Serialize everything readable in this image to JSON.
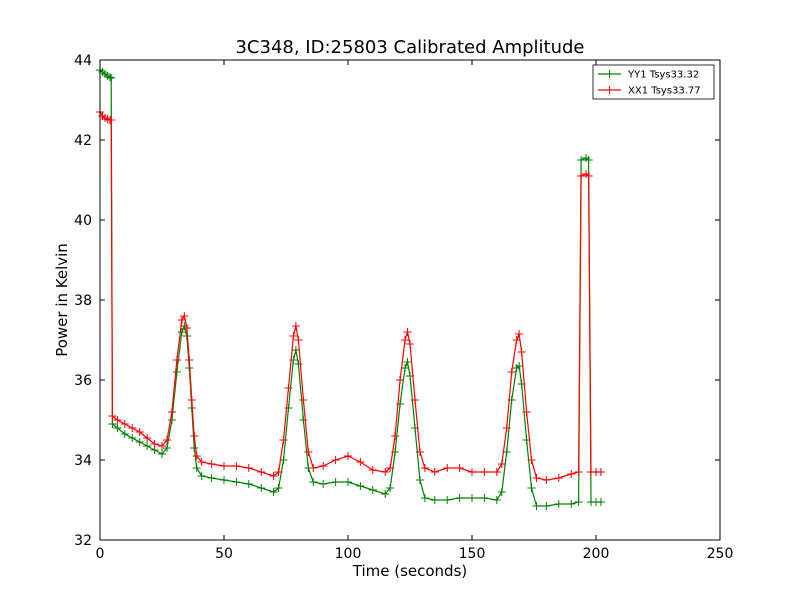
{
  "chart_data": {
    "type": "line",
    "title": "3C348, ID:25803 Calibrated Amplitude",
    "xlabel": "Time (seconds)",
    "ylabel": "Power in Kelvin",
    "xlim": [
      0,
      250
    ],
    "ylim": [
      32,
      44
    ],
    "xticks": [
      0,
      50,
      100,
      150,
      200,
      250
    ],
    "yticks": [
      32,
      34,
      36,
      38,
      40,
      42,
      44
    ],
    "grid": false,
    "legend_position": "top-right",
    "marker": "+",
    "series": [
      {
        "name": "YY1 Tsys33.32",
        "color": "#008000",
        "points": [
          [
            0,
            43.75
          ],
          [
            1,
            43.7
          ],
          [
            2,
            43.65
          ],
          [
            3,
            43.6
          ],
          [
            4,
            43.57
          ],
          [
            4.5,
            43.55
          ],
          [
            5,
            34.9
          ],
          [
            7,
            34.8
          ],
          [
            10,
            34.65
          ],
          [
            13,
            34.55
          ],
          [
            16,
            34.45
          ],
          [
            19,
            34.35
          ],
          [
            22,
            34.25
          ],
          [
            25,
            34.15
          ],
          [
            27,
            34.3
          ],
          [
            29,
            35.0
          ],
          [
            31,
            36.2
          ],
          [
            33,
            37.2
          ],
          [
            34,
            37.35
          ],
          [
            35,
            37.1
          ],
          [
            36,
            36.3
          ],
          [
            37,
            35.3
          ],
          [
            38,
            34.3
          ],
          [
            39,
            33.8
          ],
          [
            41,
            33.6
          ],
          [
            45,
            33.55
          ],
          [
            50,
            33.5
          ],
          [
            55,
            33.45
          ],
          [
            60,
            33.4
          ],
          [
            65,
            33.3
          ],
          [
            70,
            33.2
          ],
          [
            72,
            33.3
          ],
          [
            74,
            34.0
          ],
          [
            76,
            35.3
          ],
          [
            78,
            36.5
          ],
          [
            79,
            36.75
          ],
          [
            80,
            36.4
          ],
          [
            82,
            35.0
          ],
          [
            84,
            33.8
          ],
          [
            86,
            33.45
          ],
          [
            90,
            33.4
          ],
          [
            95,
            33.45
          ],
          [
            100,
            33.45
          ],
          [
            105,
            33.35
          ],
          [
            110,
            33.25
          ],
          [
            115,
            33.15
          ],
          [
            117,
            33.3
          ],
          [
            119,
            34.2
          ],
          [
            121,
            35.4
          ],
          [
            123,
            36.3
          ],
          [
            124,
            36.45
          ],
          [
            125,
            36.1
          ],
          [
            127,
            34.8
          ],
          [
            129,
            33.5
          ],
          [
            131,
            33.05
          ],
          [
            135,
            33.0
          ],
          [
            140,
            33.0
          ],
          [
            145,
            33.05
          ],
          [
            150,
            33.05
          ],
          [
            155,
            33.05
          ],
          [
            160,
            33.0
          ],
          [
            162,
            33.2
          ],
          [
            164,
            34.2
          ],
          [
            166,
            35.5
          ],
          [
            168,
            36.3
          ],
          [
            169,
            36.35
          ],
          [
            170,
            35.9
          ],
          [
            172,
            34.5
          ],
          [
            174,
            33.3
          ],
          [
            176,
            32.85
          ],
          [
            180,
            32.85
          ],
          [
            185,
            32.9
          ],
          [
            190,
            32.9
          ],
          [
            193,
            32.95
          ],
          [
            194,
            41.5
          ],
          [
            196,
            41.55
          ],
          [
            197,
            41.5
          ],
          [
            198,
            32.95
          ],
          [
            200,
            32.95
          ],
          [
            202,
            32.95
          ]
        ]
      },
      {
        "name": "XX1 Tsys33.77",
        "color": "#ff0000",
        "points": [
          [
            0,
            42.7
          ],
          [
            1,
            42.6
          ],
          [
            2,
            42.55
          ],
          [
            3,
            42.52
          ],
          [
            4,
            42.5
          ],
          [
            4.5,
            42.5
          ],
          [
            5,
            35.1
          ],
          [
            7,
            35.0
          ],
          [
            10,
            34.9
          ],
          [
            13,
            34.8
          ],
          [
            16,
            34.7
          ],
          [
            19,
            34.55
          ],
          [
            22,
            34.4
          ],
          [
            25,
            34.35
          ],
          [
            27,
            34.5
          ],
          [
            29,
            35.2
          ],
          [
            31,
            36.5
          ],
          [
            33,
            37.5
          ],
          [
            34,
            37.6
          ],
          [
            35,
            37.3
          ],
          [
            36,
            36.5
          ],
          [
            37,
            35.5
          ],
          [
            38,
            34.6
          ],
          [
            39,
            34.1
          ],
          [
            41,
            33.95
          ],
          [
            45,
            33.9
          ],
          [
            50,
            33.85
          ],
          [
            55,
            33.85
          ],
          [
            60,
            33.8
          ],
          [
            65,
            33.7
          ],
          [
            70,
            33.6
          ],
          [
            72,
            33.7
          ],
          [
            74,
            34.5
          ],
          [
            76,
            35.8
          ],
          [
            78,
            37.1
          ],
          [
            79,
            37.35
          ],
          [
            80,
            37.0
          ],
          [
            82,
            35.5
          ],
          [
            84,
            34.2
          ],
          [
            86,
            33.8
          ],
          [
            90,
            33.85
          ],
          [
            95,
            34.0
          ],
          [
            100,
            34.1
          ],
          [
            105,
            33.95
          ],
          [
            110,
            33.75
          ],
          [
            115,
            33.7
          ],
          [
            117,
            33.8
          ],
          [
            119,
            34.6
          ],
          [
            121,
            36.0
          ],
          [
            123,
            37.0
          ],
          [
            124,
            37.2
          ],
          [
            125,
            36.9
          ],
          [
            127,
            35.5
          ],
          [
            129,
            34.2
          ],
          [
            131,
            33.8
          ],
          [
            135,
            33.7
          ],
          [
            140,
            33.8
          ],
          [
            145,
            33.8
          ],
          [
            150,
            33.7
          ],
          [
            155,
            33.7
          ],
          [
            160,
            33.7
          ],
          [
            162,
            33.9
          ],
          [
            164,
            34.8
          ],
          [
            166,
            36.2
          ],
          [
            168,
            37.0
          ],
          [
            169,
            37.15
          ],
          [
            170,
            36.7
          ],
          [
            172,
            35.2
          ],
          [
            174,
            34.0
          ],
          [
            176,
            33.55
          ],
          [
            180,
            33.5
          ],
          [
            185,
            33.55
          ],
          [
            190,
            33.65
          ],
          [
            193,
            33.7
          ],
          [
            194,
            41.1
          ],
          [
            196,
            41.15
          ],
          [
            197,
            41.1
          ],
          [
            198,
            33.7
          ],
          [
            200,
            33.7
          ],
          [
            202,
            33.7
          ]
        ]
      }
    ]
  }
}
